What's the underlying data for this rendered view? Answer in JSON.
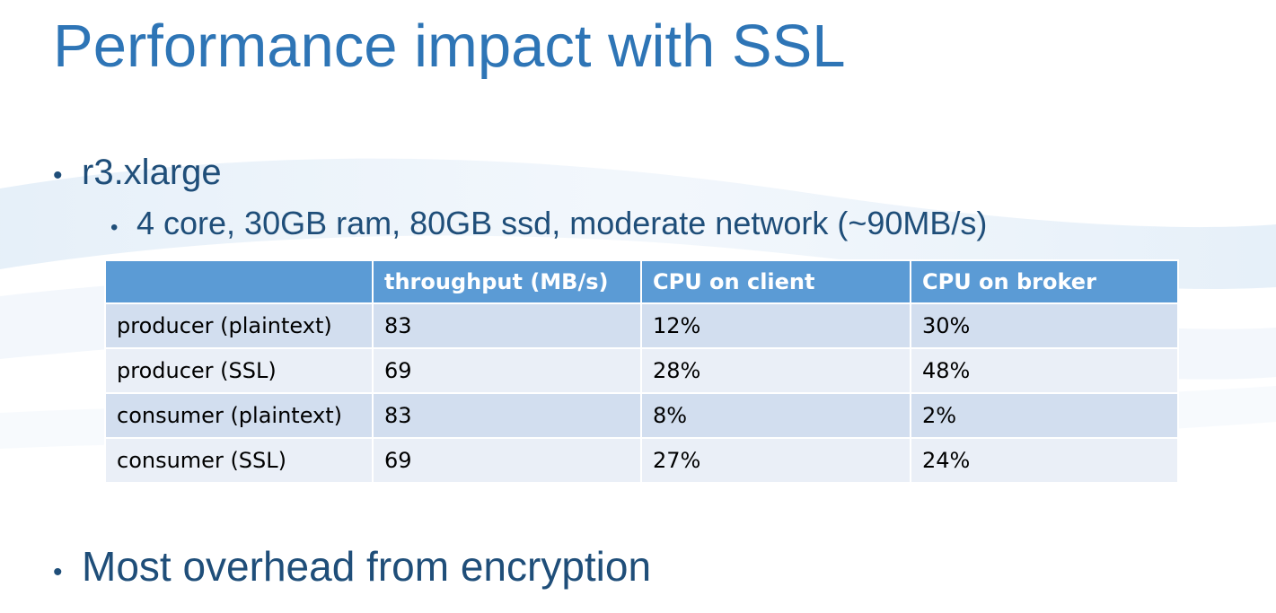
{
  "slide": {
    "title": "Performance impact with SSL"
  },
  "bullets": {
    "instance": "r3.xlarge",
    "instance_specs": "4 core, 30GB ram, 80GB ssd, moderate network (~90MB/s)",
    "conclusion": "Most overhead from encryption",
    "bullet_char": "•"
  },
  "table": {
    "headers": [
      "",
      "throughput (MB/s)",
      "CPU on client",
      "CPU on broker"
    ],
    "rows": [
      [
        "producer (plaintext)",
        "83",
        "12%",
        "30%"
      ],
      [
        "producer (SSL)",
        "69",
        "28%",
        "48%"
      ],
      [
        "consumer (plaintext)",
        "83",
        "8%",
        "2%"
      ],
      [
        "consumer (SSL)",
        "69",
        "27%",
        "24%"
      ]
    ]
  },
  "colors": {
    "title": "#2e75b6",
    "bullet_text": "#1f4e79",
    "table_header": "#5b9bd5",
    "table_row_odd": "#d2deef",
    "table_row_even": "#eaeff7"
  }
}
